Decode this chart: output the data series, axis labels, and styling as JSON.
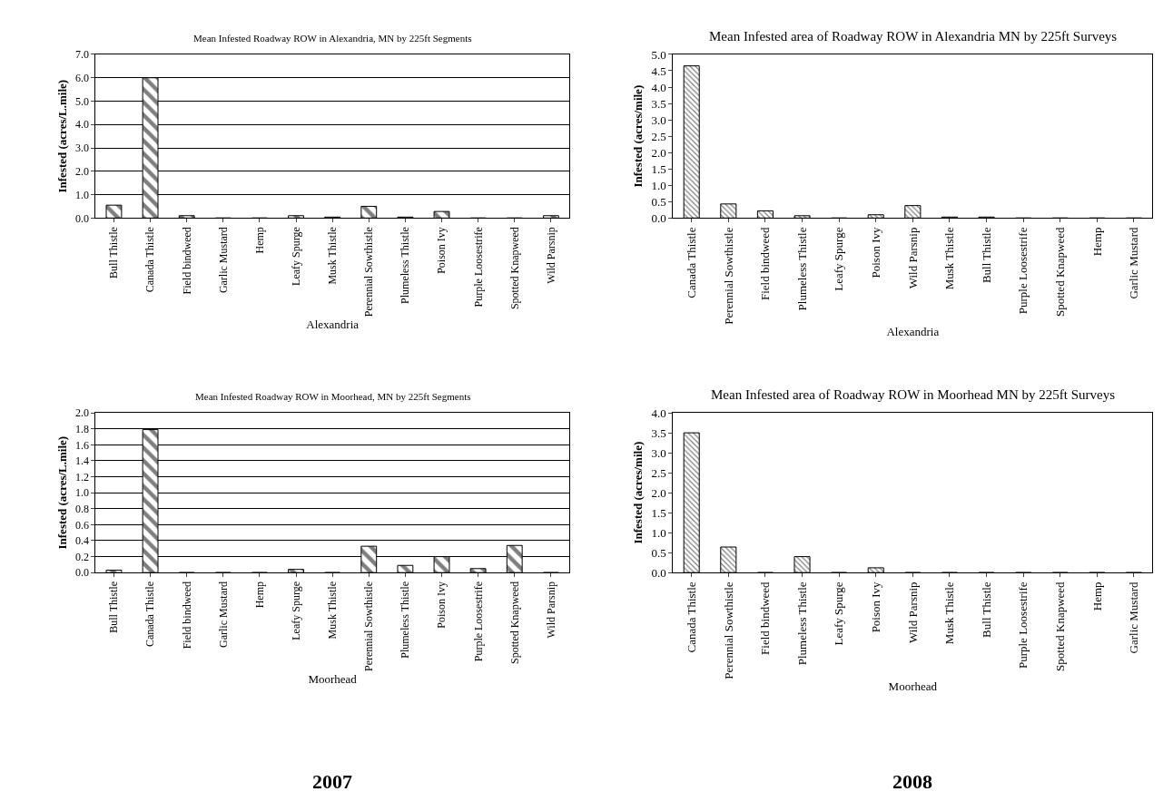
{
  "chart_data": [
    {
      "type": "bar",
      "title": "Mean Infested Roadway ROW in Alexandria, MN by 225ft Segments",
      "xlabel": "Alexandria",
      "ylabel": "Infested (acres/L.mile)",
      "categories": [
        "Bull Thistle",
        "Canada Thistle",
        "Field bindweed",
        "Garlic Mustard",
        "Hemp",
        "Leafy Spurge",
        "Musk Thistle",
        "Perennial Sowthistle",
        "Plumeless Thistle",
        "Poison Ivy",
        "Purple Loosestrife",
        "Spotted Knapweed",
        "Wild Parsnip"
      ],
      "values": [
        0.55,
        6.0,
        0.1,
        0,
        0,
        0.1,
        0.04,
        0.5,
        0.04,
        0.28,
        0,
        0,
        0.1
      ],
      "color": "#000000",
      "ylim": [
        0,
        7
      ],
      "yticks": [
        {
          "value": 0,
          "label": "0.0"
        },
        {
          "value": 1,
          "label": "1.0"
        },
        {
          "value": 2,
          "label": "2.0"
        },
        {
          "value": 3,
          "label": "3.0"
        },
        {
          "value": 4,
          "label": "4.0"
        },
        {
          "value": 5,
          "label": "5.0"
        },
        {
          "value": 6,
          "label": "6.0"
        },
        {
          "value": 7,
          "label": "7.0"
        }
      ],
      "grid": "y"
    },
    {
      "type": "bar",
      "title": "Mean Infested area of Roadway ROW in Alexandria MN by 225ft Surveys",
      "xlabel": "Alexandria",
      "ylabel": "Infested (acres/mile)",
      "categories": [
        "Canada Thistle",
        "Perennial Sowthistle",
        "Field bindweed",
        "Plumeless Thistle",
        "Leafy Spurge",
        "Poison Ivy",
        "Wild Parsnip",
        "Musk Thistle",
        "Bull Thistle",
        "Purple Loosestrife",
        "Spotted Knapweed",
        "Hemp",
        "Garlic Mustard"
      ],
      "values": [
        4.65,
        0.43,
        0.22,
        0.07,
        0,
        0.1,
        0.38,
        0.03,
        0.03,
        0,
        0,
        0,
        0
      ],
      "color": "#000000",
      "ylim": [
        0,
        5
      ],
      "yticks": [
        {
          "value": 0,
          "label": "0.0"
        },
        {
          "value": 0.5,
          "label": "0.5"
        },
        {
          "value": 1,
          "label": "1.0"
        },
        {
          "value": 1.5,
          "label": "1.5"
        },
        {
          "value": 2,
          "label": "2.0"
        },
        {
          "value": 2.5,
          "label": "2.5"
        },
        {
          "value": 3,
          "label": "3.0"
        },
        {
          "value": 3.5,
          "label": "3.5"
        },
        {
          "value": 4,
          "label": "4.0"
        },
        {
          "value": 4.5,
          "label": "4.5"
        },
        {
          "value": 5,
          "label": "5.0"
        }
      ]
    },
    {
      "type": "bar",
      "title": "Mean Infested Roadway ROW in Moorhead, MN by 225ft Segments",
      "xlabel": "Moorhead",
      "ylabel": "Infested (acres/L.mile)",
      "categories": [
        "Bull Thistle",
        "Canada Thistle",
        "Field bindweed",
        "Garlic Mustard",
        "Hemp",
        "Leafy Spurge",
        "Musk Thistle",
        "Perennial Sowthistle",
        "Plumeless Thistle",
        "Poison Ivy",
        "Purple Loosestrife",
        "Spotted Knapweed",
        "Wild Parsnip"
      ],
      "values": [
        0.03,
        1.79,
        0,
        0,
        0,
        0.04,
        0,
        0.33,
        0.09,
        0.2,
        0.05,
        0.34,
        0
      ],
      "color": "#000000",
      "ylim": [
        0,
        2
      ],
      "yticks": [
        {
          "value": 0,
          "label": "0.0"
        },
        {
          "value": 0.2,
          "label": "0.2"
        },
        {
          "value": 0.4,
          "label": "0.4"
        },
        {
          "value": 0.6,
          "label": "0.6"
        },
        {
          "value": 0.8,
          "label": "0.8"
        },
        {
          "value": 1,
          "label": "1.0"
        },
        {
          "value": 1.2,
          "label": "1.2"
        },
        {
          "value": 1.4,
          "label": "1.4"
        },
        {
          "value": 1.6,
          "label": "1.6"
        },
        {
          "value": 1.8,
          "label": "1.8"
        },
        {
          "value": 2,
          "label": "2.0"
        }
      ],
      "grid": "y",
      "annotations": [
        "2007"
      ]
    },
    {
      "type": "bar",
      "title": "Mean Infested area of Roadway ROW in Moorhead MN by 225ft Surveys",
      "xlabel": "Moorhead",
      "ylabel": "Infested (acres/mile)",
      "categories": [
        "Canada Thistle",
        "Perennial Sowthistle",
        "Field bindweed",
        "Plumeless Thistle",
        "Leafy Spurge",
        "Poison Ivy",
        "Wild Parsnip",
        "Musk Thistle",
        "Bull Thistle",
        "Purple Loosestrife",
        "Spotted Knapweed",
        "Hemp",
        "Garlic Mustard"
      ],
      "values": [
        3.5,
        0.64,
        0,
        0.4,
        0,
        0.12,
        0,
        0,
        0,
        0,
        0,
        0,
        0
      ],
      "color": "#000000",
      "ylim": [
        0,
        4
      ],
      "yticks": [
        {
          "value": 0,
          "label": "0.0"
        },
        {
          "value": 0.5,
          "label": "0.5"
        },
        {
          "value": 1,
          "label": "1.0"
        },
        {
          "value": 1.5,
          "label": "1.5"
        },
        {
          "value": 2,
          "label": "2.0"
        },
        {
          "value": 2.5,
          "label": "2.5"
        },
        {
          "value": 3,
          "label": "3.0"
        },
        {
          "value": 3.5,
          "label": "3.5"
        },
        {
          "value": 4,
          "label": "4.0"
        }
      ],
      "annotations": [
        "2008"
      ]
    }
  ]
}
